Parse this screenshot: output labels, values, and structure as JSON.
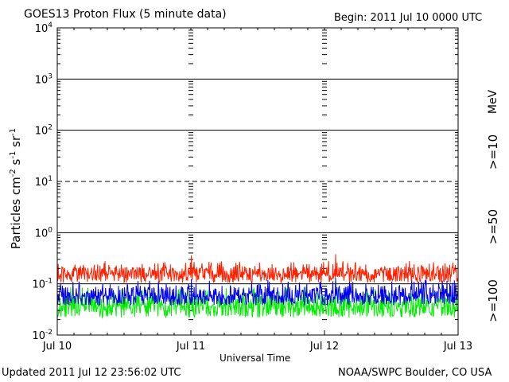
{
  "chart_data": {
    "type": "line",
    "title": "GOES13 Proton Flux (5 minute data)",
    "begin": "Begin: 2011 Jul 10 0000 UTC",
    "xlabel": "Universal Time",
    "ylabel_main": "Particles cm",
    "ylabel_sup1": "-2",
    "ylabel_s": "s",
    "ylabel_sup2": "-1",
    "ylabel_sr": "sr",
    "ylabel_sup3": "-1",
    "yscale": "log",
    "ylim": [
      0.01,
      10000
    ],
    "y_ticks": [
      {
        "value": 0.01,
        "base": "10",
        "exp": "-2"
      },
      {
        "value": 0.1,
        "base": "10",
        "exp": "-1"
      },
      {
        "value": 1,
        "base": "10",
        "exp": "0"
      },
      {
        "value": 10,
        "base": "10",
        "exp": "1"
      },
      {
        "value": 100,
        "base": "10",
        "exp": "2"
      },
      {
        "value": 1000,
        "base": "10",
        "exp": "3"
      },
      {
        "value": 10000,
        "base": "10",
        "exp": "4"
      }
    ],
    "x_ticks": [
      "Jul 10",
      "Jul 11",
      "Jul 12",
      "Jul 13"
    ],
    "xlim_days": [
      0,
      3
    ],
    "threshold_lines": [
      {
        "value": 10,
        "style": "dashed"
      },
      {
        "value": 0.1,
        "style": "solid"
      }
    ],
    "unit": "MeV",
    "series": [
      {
        "name": ">=10",
        "color": "#ff2000",
        "median": 0.15,
        "low": 0.105,
        "high": 0.28,
        "spike": 0.38
      },
      {
        "name": ">=50",
        "color": "#0000ee",
        "median": 0.055,
        "low": 0.038,
        "high": 0.12,
        "spike": 0.13
      },
      {
        "name": ">=100",
        "color": "#00ee00",
        "median": 0.035,
        "low": 0.022,
        "high": 0.085,
        "spike": 0.09
      }
    ]
  },
  "footer": {
    "updated": "Updated 2011 Jul 12 23:56:02 UTC",
    "source": "NOAA/SWPC Boulder, CO USA"
  }
}
